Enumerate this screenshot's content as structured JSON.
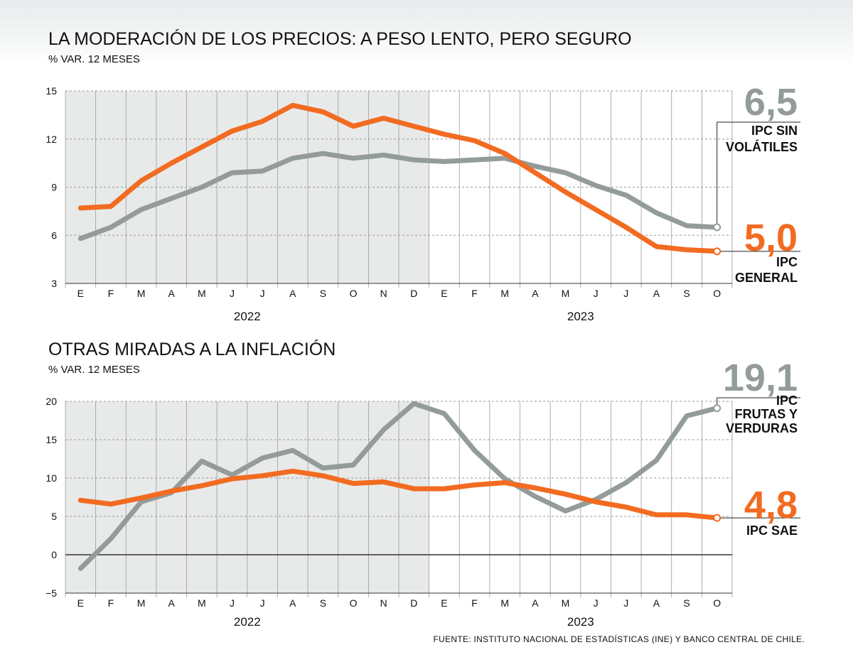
{
  "source": "FUENTE: INSTITUTO NACIONAL DE ESTADÍSTICAS (INE) Y BANCO CENTRAL DE CHILE.",
  "colors": {
    "orange": "#f26b21",
    "gray": "#939c9b",
    "shade": "#e8eaea",
    "grid": "#9a9a9a"
  },
  "chart_data": [
    {
      "type": "line",
      "title": "LA MODERACIÓN DE LOS PRECIOS: A PESO LENTO, PERO SEGURO",
      "ylabel": "% VAR. 12 MESES",
      "x": [
        "E",
        "F",
        "M",
        "A",
        "M",
        "J",
        "J",
        "A",
        "S",
        "O",
        "N",
        "D",
        "E",
        "F",
        "M",
        "A",
        "M",
        "J",
        "J",
        "A",
        "S",
        "O"
      ],
      "years": [
        {
          "label": "2022",
          "from": 0,
          "to": 11
        },
        {
          "label": "2023",
          "from": 12,
          "to": 21
        }
      ],
      "shaded_range": [
        0,
        11
      ],
      "ylim": [
        3,
        15
      ],
      "yticks": [
        3,
        6,
        9,
        12,
        15
      ],
      "series": [
        {
          "name": "IPC SIN VOLÁTILES",
          "name_lines": [
            "IPC SIN",
            "VOLÁTILES"
          ],
          "last_value_label": "6,5",
          "color": "#939c9b",
          "values": [
            5.8,
            6.5,
            7.6,
            8.3,
            9.0,
            9.9,
            10.0,
            10.8,
            11.1,
            10.8,
            11.0,
            10.7,
            10.6,
            10.7,
            10.8,
            10.3,
            9.9,
            9.1,
            8.5,
            7.4,
            6.6,
            6.5
          ]
        },
        {
          "name": "IPC GENERAL",
          "name_lines": [
            "IPC",
            "GENERAL"
          ],
          "last_value_label": "5,0",
          "color": "#f26b21",
          "values": [
            7.7,
            7.8,
            9.4,
            10.5,
            11.5,
            12.5,
            13.1,
            14.1,
            13.7,
            12.8,
            13.3,
            12.8,
            12.3,
            11.9,
            11.1,
            9.9,
            8.7,
            7.6,
            6.5,
            5.3,
            5.1,
            5.0
          ]
        }
      ]
    },
    {
      "type": "line",
      "title": "OTRAS MIRADAS A LA INFLACIÓN",
      "ylabel": "% VAR. 12 MESES",
      "x": [
        "E",
        "F",
        "M",
        "A",
        "M",
        "J",
        "J",
        "A",
        "S",
        "O",
        "N",
        "D",
        "E",
        "F",
        "M",
        "A",
        "M",
        "J",
        "J",
        "A",
        "S",
        "O"
      ],
      "years": [
        {
          "label": "2022",
          "from": 0,
          "to": 11
        },
        {
          "label": "2023",
          "from": 12,
          "to": 21
        }
      ],
      "shaded_range": [
        0,
        11
      ],
      "ylim": [
        -5,
        20
      ],
      "yticks": [
        -5,
        0,
        5,
        10,
        15,
        20
      ],
      "series": [
        {
          "name": "IPC FRUTAS Y VERDURAS",
          "name_lines": [
            "IPC",
            "FRUTAS Y",
            "VERDURAS"
          ],
          "last_value_label": "19,1",
          "color": "#939c9b",
          "values": [
            -1.8,
            2.1,
            6.9,
            8.1,
            12.2,
            10.4,
            12.6,
            13.6,
            11.3,
            11.7,
            16.3,
            19.7,
            18.4,
            13.6,
            9.9,
            7.6,
            5.7,
            7.2,
            9.4,
            12.3,
            18.1,
            19.1
          ]
        },
        {
          "name": "IPC SAE",
          "name_lines": [
            "IPC SAE"
          ],
          "last_value_label": "4,8",
          "color": "#f26b21",
          "values": [
            7.1,
            6.6,
            7.4,
            8.3,
            9.0,
            9.9,
            10.3,
            10.9,
            10.3,
            9.3,
            9.5,
            8.6,
            8.6,
            9.1,
            9.4,
            8.7,
            7.9,
            6.9,
            6.2,
            5.2,
            5.2,
            4.8
          ]
        }
      ]
    }
  ]
}
